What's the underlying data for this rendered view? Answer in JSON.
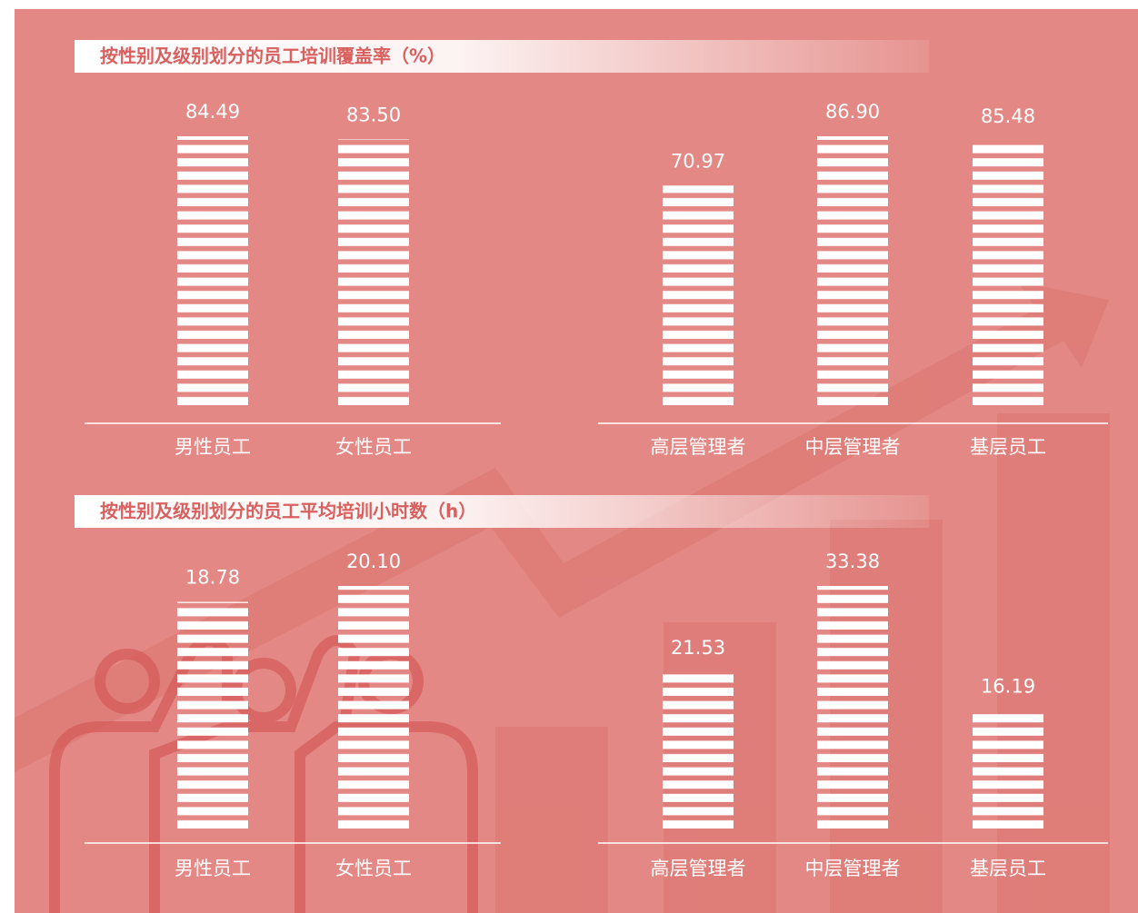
{
  "chart_data": [
    {
      "type": "bar",
      "title": "按性别及级别划分的员工培训覆盖率（%）",
      "categories": [
        "男性员工",
        "女性员工"
      ],
      "values": [
        84.49,
        83.5
      ],
      "value_labels": [
        "84.49",
        "83.50"
      ],
      "color": "#ffffff"
    },
    {
      "type": "bar",
      "categories": [
        "高层管理者",
        "中层管理者",
        "基层员工"
      ],
      "values": [
        70.97,
        86.9,
        85.48
      ],
      "value_labels": [
        "70.97",
        "86.90",
        "85.48"
      ],
      "color": "#ffffff"
    },
    {
      "type": "bar",
      "title": "按性别及级别划分的员工平均培训小时数（h）",
      "categories": [
        "男性员工",
        "女性员工"
      ],
      "values": [
        18.78,
        20.1
      ],
      "value_labels": [
        "18.78",
        "20.10"
      ],
      "color": "#ffffff"
    },
    {
      "type": "bar",
      "categories": [
        "高层管理者",
        "中层管理者",
        "基层员工"
      ],
      "values": [
        21.53,
        33.38,
        16.19
      ],
      "value_labels": [
        "21.53",
        "33.38",
        "16.19"
      ],
      "color": "#ffffff"
    }
  ]
}
